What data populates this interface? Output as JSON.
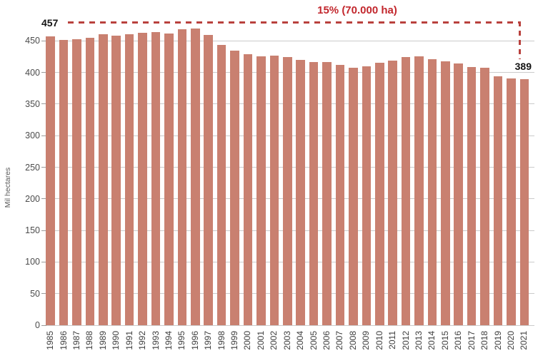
{
  "chart_data": {
    "type": "bar",
    "title": "",
    "xlabel": "",
    "ylabel": "Mil hectares",
    "categories": [
      "1985",
      "1986",
      "1987",
      "1988",
      "1989",
      "1990",
      "1991",
      "1992",
      "1993",
      "1994",
      "1995",
      "1996",
      "1997",
      "1998",
      "1999",
      "2000",
      "2001",
      "2002",
      "2003",
      "2004",
      "2005",
      "2006",
      "2007",
      "2008",
      "2009",
      "2010",
      "2011",
      "2012",
      "2013",
      "2014",
      "2015",
      "2016",
      "2017",
      "2018",
      "2019",
      "2020",
      "2021"
    ],
    "values": [
      457,
      452,
      453,
      455,
      460,
      458,
      460,
      463,
      464,
      462,
      468,
      470,
      459,
      444,
      435,
      429,
      426,
      427,
      424,
      420,
      416,
      417,
      412,
      408,
      410,
      415,
      419,
      424,
      426,
      421,
      418,
      414,
      409,
      407,
      394,
      390,
      389
    ],
    "ylim": [
      0,
      450
    ],
    "yticks": [
      0,
      50,
      100,
      150,
      200,
      250,
      300,
      350,
      400,
      450
    ],
    "grid": true,
    "legend": "none",
    "bar_color": "#c98070",
    "gridline_color": "#cbcbcb",
    "annotations": {
      "first_value_label": "457",
      "last_value_label": "389",
      "change_label": "15% (70.000 ha)",
      "line_color": "#b9413d",
      "text_color": "#c2272d"
    }
  }
}
